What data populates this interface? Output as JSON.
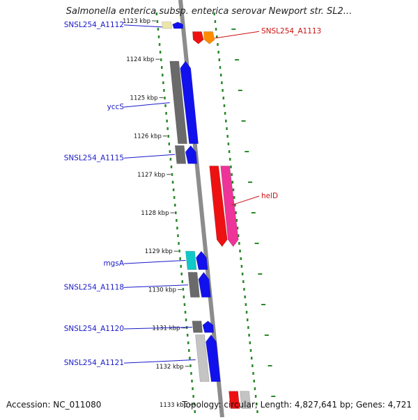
{
  "title": "Salmonella enterica subsp. enterica serovar Newport str. SL2...",
  "footer": {
    "accession": "Accession: NC_011080",
    "summary": "Topology: circular; Length: 4,827,641 bp; Genes: 4,721"
  },
  "colors": {
    "backbone": "#8c8c8c",
    "dots": "#2a8a2a",
    "left_label": "#1818c8",
    "right_label": "#cc1111"
  },
  "ticks": [
    {
      "label": "1123 kbp",
      "pos": 1123.0
    },
    {
      "label": "1124 kbp",
      "pos": 1124.0
    },
    {
      "label": "1125 kbp",
      "pos": 1125.0
    },
    {
      "label": "1126 kbp",
      "pos": 1126.0
    },
    {
      "label": "1127 kbp",
      "pos": 1127.0
    },
    {
      "label": "1128 kbp",
      "pos": 1128.0
    },
    {
      "label": "1129 kbp",
      "pos": 1129.0
    },
    {
      "label": "1130 kbp",
      "pos": 1130.0
    },
    {
      "label": "1131 kbp",
      "pos": 1131.0
    },
    {
      "label": "1132 kbp",
      "pos": 1132.0
    },
    {
      "label": "1133 kbp",
      "pos": 1133.0
    }
  ],
  "genes": [
    {
      "id": "g1a",
      "side": "left",
      "start": 1123.03,
      "end": 1123.2,
      "color": "#ece6a8",
      "arrow": false
    },
    {
      "id": "g1b",
      "side": "left",
      "start": 1123.03,
      "end": 1123.2,
      "color": "#1111ee",
      "arrow": true
    },
    {
      "id": "g2a",
      "side": "right",
      "start": 1123.28,
      "end": 1123.6,
      "color": "#ee1111",
      "arrow": true
    },
    {
      "id": "g2b",
      "side": "right",
      "start": 1123.28,
      "end": 1123.6,
      "color": "#ff8c00",
      "arrow": true
    },
    {
      "id": "g3a",
      "side": "left",
      "start": 1124.05,
      "end": 1126.2,
      "color": "#6a6a6a",
      "arrow": false
    },
    {
      "id": "g3b",
      "side": "left",
      "start": 1124.05,
      "end": 1126.2,
      "color": "#1111ee",
      "arrow": true
    },
    {
      "id": "g4a",
      "side": "left",
      "start": 1126.25,
      "end": 1126.72,
      "color": "#6a6a6a",
      "arrow": false
    },
    {
      "id": "g4b",
      "side": "left",
      "start": 1126.25,
      "end": 1126.72,
      "color": "#1111ee",
      "arrow": true
    },
    {
      "id": "g5a",
      "side": "right",
      "start": 1126.78,
      "end": 1128.88,
      "color": "#ee1111",
      "arrow": true
    },
    {
      "id": "g5b",
      "side": "right",
      "start": 1126.78,
      "end": 1128.88,
      "color": "#ee3399",
      "arrow": true
    },
    {
      "id": "g6a",
      "side": "left",
      "start": 1129.0,
      "end": 1129.48,
      "color": "#11c8c8",
      "arrow": false
    },
    {
      "id": "g6b",
      "side": "left",
      "start": 1129.0,
      "end": 1129.48,
      "color": "#1111ee",
      "arrow": true
    },
    {
      "id": "g7a",
      "side": "left",
      "start": 1129.55,
      "end": 1130.2,
      "color": "#6a6a6a",
      "arrow": false
    },
    {
      "id": "g7b",
      "side": "left",
      "start": 1129.55,
      "end": 1130.2,
      "color": "#1111ee",
      "arrow": true
    },
    {
      "id": "g8a",
      "side": "left",
      "start": 1130.82,
      "end": 1131.12,
      "color": "#6a6a6a",
      "arrow": false
    },
    {
      "id": "g8b",
      "side": "left",
      "start": 1130.82,
      "end": 1131.12,
      "color": "#1111ee",
      "arrow": true
    },
    {
      "id": "g9a",
      "side": "left",
      "start": 1131.18,
      "end": 1132.4,
      "color": "#c4c4c4",
      "arrow": false
    },
    {
      "id": "g9b",
      "side": "left",
      "start": 1131.18,
      "end": 1132.4,
      "color": "#1111ee",
      "arrow": true
    },
    {
      "id": "g10a",
      "side": "right",
      "start": 1132.65,
      "end": 1133.1,
      "color": "#ee1111",
      "arrow": false
    },
    {
      "id": "g10b",
      "side": "right",
      "start": 1132.65,
      "end": 1133.1,
      "color": "#c4c4c4",
      "arrow": false
    }
  ],
  "labels": [
    {
      "text": "SNSL254_A1112",
      "side": "left",
      "pos": 1123.16,
      "gene_pos": 1123.16
    },
    {
      "text": "SNSL254_A1113",
      "side": "right",
      "pos": 1123.33,
      "gene_pos": 1123.45
    },
    {
      "text": "yccS",
      "side": "left",
      "pos": 1125.3,
      "gene_pos": 1125.13
    },
    {
      "text": "SNSL254_A1115",
      "side": "left",
      "pos": 1126.63,
      "gene_pos": 1126.48
    },
    {
      "text": "helD",
      "side": "right",
      "pos": 1127.62,
      "gene_pos": 1127.8
    },
    {
      "text": "mgsA",
      "side": "left",
      "pos": 1129.38,
      "gene_pos": 1129.24
    },
    {
      "text": "SNSL254_A1118",
      "side": "left",
      "pos": 1130.0,
      "gene_pos": 1129.88
    },
    {
      "text": "SNSL254_A1120",
      "side": "left",
      "pos": 1131.08,
      "gene_pos": 1130.98
    },
    {
      "text": "SNSL254_A1121",
      "side": "left",
      "pos": 1131.97,
      "gene_pos": 1131.83
    }
  ]
}
